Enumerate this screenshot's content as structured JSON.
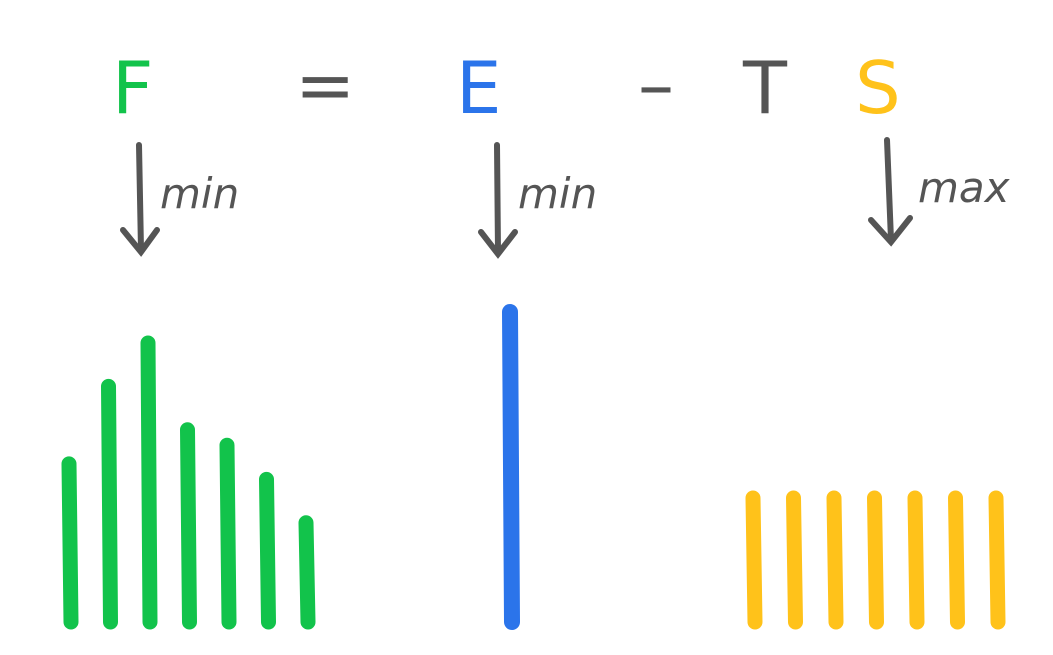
{
  "equation": {
    "F": "F",
    "equals": "=",
    "E": "E",
    "minus": "–",
    "T": "T",
    "S": "S"
  },
  "annotations": {
    "F_label": "min",
    "E_label": "min",
    "S_label": "max"
  },
  "colors": {
    "F": "#12c34b",
    "E": "#2b74ea",
    "S": "#ffc21a",
    "ink": "#555555"
  },
  "distributions": {
    "F_bars": [
      0.51,
      0.76,
      0.9,
      0.62,
      0.57,
      0.46,
      0.32
    ],
    "E_bars": [
      1.0
    ],
    "S_bars": [
      0.4,
      0.4,
      0.4,
      0.4,
      0.4,
      0.4,
      0.4
    ]
  }
}
